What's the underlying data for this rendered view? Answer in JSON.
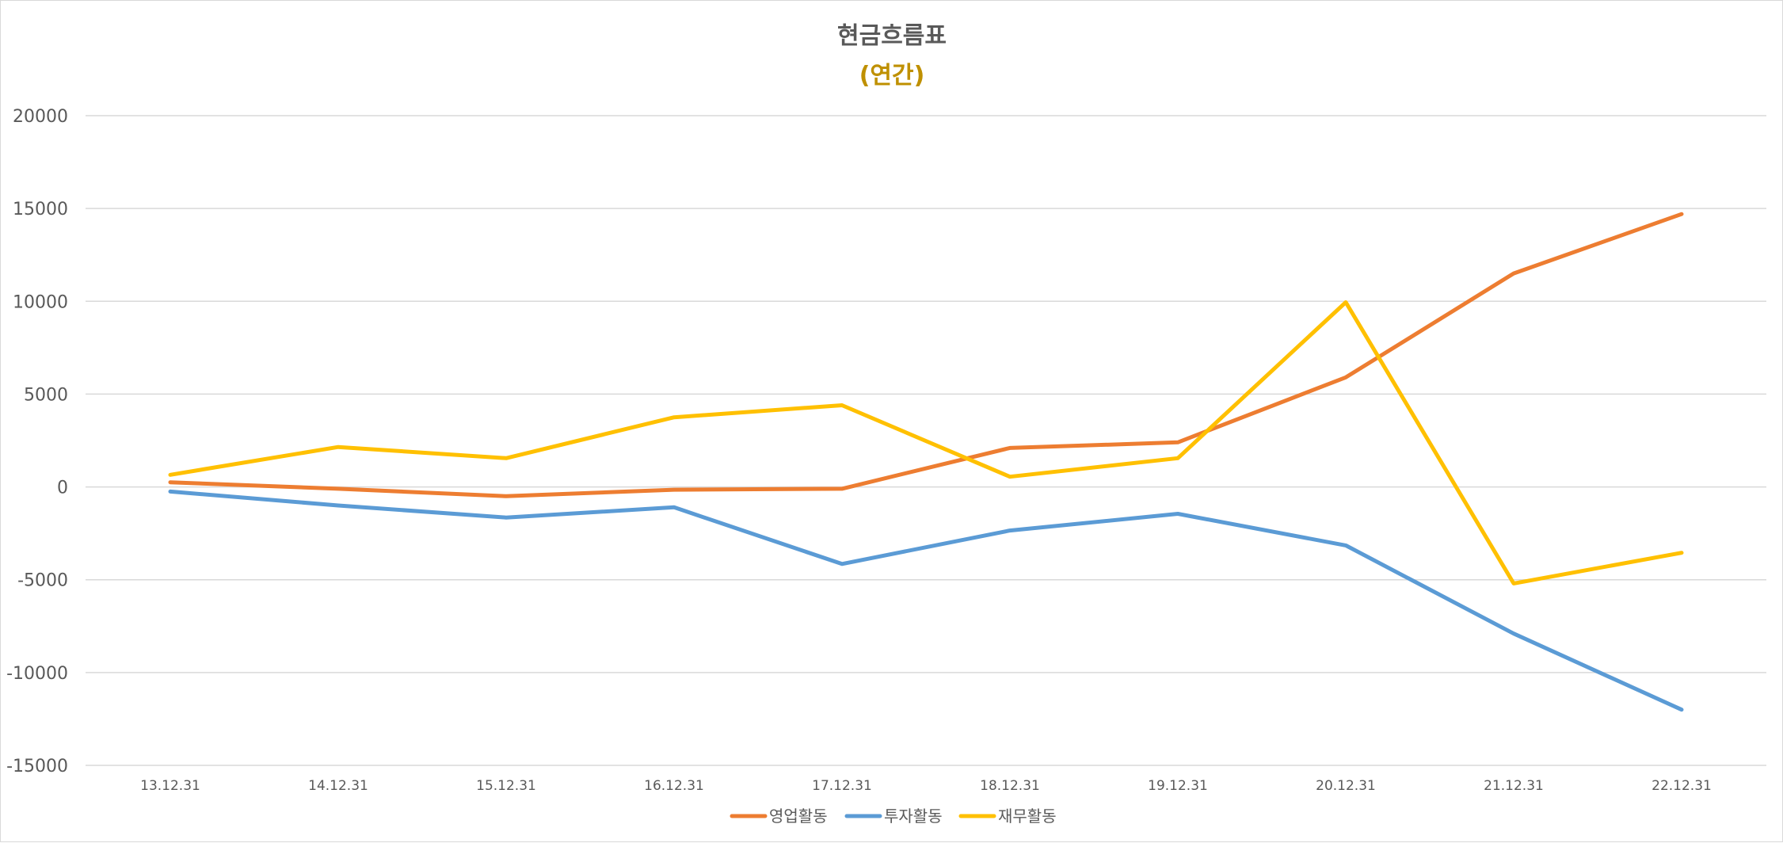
{
  "chart_data": {
    "type": "line",
    "title": "현금흐름표",
    "subtitle": "(연간)",
    "categories": [
      "13.12.31",
      "14.12.31",
      "15.12.31",
      "16.12.31",
      "17.12.31",
      "18.12.31",
      "19.12.31",
      "20.12.31",
      "21.12.31",
      "22.12.31"
    ],
    "series": [
      {
        "name": "영업활동",
        "color": "#ED7D31",
        "values": [
          250,
          -100,
          -500,
          -150,
          -100,
          2100,
          2400,
          5900,
          11500,
          14700
        ]
      },
      {
        "name": "투자활동",
        "color": "#5B9BD5",
        "values": [
          -250,
          -1000,
          -1650,
          -1100,
          -4150,
          -2350,
          -1450,
          -3150,
          -7900,
          -12000
        ]
      },
      {
        "name": "재무활동",
        "color": "#FFC000",
        "values": [
          650,
          2150,
          1550,
          3750,
          4400,
          550,
          1550,
          9950,
          -5200,
          -3550
        ]
      }
    ],
    "ylim": [
      -15000,
      20000
    ],
    "yticks": [
      20000,
      15000,
      10000,
      5000,
      0,
      -5000,
      -10000,
      -15000
    ],
    "grid": true,
    "legend": "bottom",
    "subtitle_color": "#BF9000"
  }
}
